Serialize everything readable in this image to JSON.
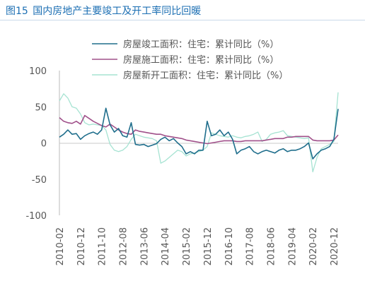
{
  "figure": {
    "number": "图15",
    "title": "国内房地产主要竣工及开工率同比回暖"
  },
  "chart_data": {
    "type": "line",
    "title": "国内房地产主要竣工及开工率同比回暖",
    "xlabel": "",
    "ylabel": "",
    "x_tick_labels": [
      "2010-02",
      "2010-12",
      "2011-10",
      "2012-08",
      "2013-06",
      "2014-04",
      "2015-02",
      "2015-12",
      "2016-10",
      "2017-08",
      "2018-06",
      "2019-04",
      "2020-02",
      "2020-12"
    ],
    "y_tick_labels": [
      "100",
      "50",
      "0",
      "-50",
      "-100"
    ],
    "ylim": [
      -100,
      100
    ],
    "xlim": [
      "2010-02",
      "2021-02"
    ],
    "legend_position": "top-right",
    "grid": false,
    "colors": {
      "completed": "#1f6e8c",
      "under_construction": "#a0508a",
      "new_start": "#a6e3d2"
    },
    "series": [
      {
        "key": "completed",
        "name": "房屋竣工面积：住宅：累计同比（%）",
        "points": [
          [
            "2010-02",
            8
          ],
          [
            "2010-04",
            12
          ],
          [
            "2010-06",
            18
          ],
          [
            "2010-08",
            12
          ],
          [
            "2010-10",
            13
          ],
          [
            "2010-12",
            5
          ],
          [
            "2011-02",
            10
          ],
          [
            "2011-04",
            13
          ],
          [
            "2011-06",
            15
          ],
          [
            "2011-08",
            12
          ],
          [
            "2011-10",
            18
          ],
          [
            "2011-12",
            48
          ],
          [
            "2012-02",
            25
          ],
          [
            "2012-04",
            15
          ],
          [
            "2012-06",
            20
          ],
          [
            "2012-08",
            10
          ],
          [
            "2012-10",
            8
          ],
          [
            "2012-12",
            28
          ],
          [
            "2013-02",
            -2
          ],
          [
            "2013-04",
            -3
          ],
          [
            "2013-06",
            -2
          ],
          [
            "2013-08",
            -5
          ],
          [
            "2013-10",
            -3
          ],
          [
            "2013-12",
            -1
          ],
          [
            "2014-02",
            5
          ],
          [
            "2014-04",
            8
          ],
          [
            "2014-06",
            3
          ],
          [
            "2014-08",
            6
          ],
          [
            "2014-10",
            0
          ],
          [
            "2014-12",
            -5
          ],
          [
            "2015-02",
            -15
          ],
          [
            "2015-04",
            -12
          ],
          [
            "2015-06",
            -15
          ],
          [
            "2015-08",
            -10
          ],
          [
            "2015-10",
            -10
          ],
          [
            "2015-12",
            30
          ],
          [
            "2016-02",
            10
          ],
          [
            "2016-04",
            12
          ],
          [
            "2016-06",
            18
          ],
          [
            "2016-08",
            10
          ],
          [
            "2016-10",
            15
          ],
          [
            "2016-12",
            5
          ],
          [
            "2017-02",
            -15
          ],
          [
            "2017-04",
            -10
          ],
          [
            "2017-06",
            -8
          ],
          [
            "2017-08",
            -5
          ],
          [
            "2017-10",
            -12
          ],
          [
            "2017-12",
            -15
          ],
          [
            "2018-02",
            -12
          ],
          [
            "2018-04",
            -10
          ],
          [
            "2018-06",
            -12
          ],
          [
            "2018-08",
            -14
          ],
          [
            "2018-10",
            -10
          ],
          [
            "2018-12",
            -8
          ],
          [
            "2019-02",
            -12
          ],
          [
            "2019-04",
            -10
          ],
          [
            "2019-06",
            -10
          ],
          [
            "2019-08",
            -8
          ],
          [
            "2019-10",
            -5
          ],
          [
            "2019-12",
            0
          ],
          [
            "2020-02",
            -22
          ],
          [
            "2020-04",
            -15
          ],
          [
            "2020-06",
            -10
          ],
          [
            "2020-08",
            -8
          ],
          [
            "2020-10",
            -5
          ],
          [
            "2020-12",
            5
          ],
          [
            "2021-02",
            47
          ]
        ]
      },
      {
        "key": "under_construction",
        "name": "房屋施工面积：住宅：累计同比（%）",
        "points": [
          [
            "2010-02",
            35
          ],
          [
            "2010-04",
            30
          ],
          [
            "2010-06",
            28
          ],
          [
            "2010-08",
            27
          ],
          [
            "2010-10",
            30
          ],
          [
            "2010-12",
            26
          ],
          [
            "2011-02",
            38
          ],
          [
            "2011-04",
            34
          ],
          [
            "2011-06",
            30
          ],
          [
            "2011-08",
            27
          ],
          [
            "2011-10",
            24
          ],
          [
            "2011-12",
            22
          ],
          [
            "2012-02",
            26
          ],
          [
            "2012-04",
            22
          ],
          [
            "2012-06",
            18
          ],
          [
            "2012-08",
            15
          ],
          [
            "2012-10",
            13
          ],
          [
            "2012-12",
            12
          ],
          [
            "2013-02",
            18
          ],
          [
            "2013-04",
            16
          ],
          [
            "2013-06",
            15
          ],
          [
            "2013-08",
            14
          ],
          [
            "2013-10",
            13
          ],
          [
            "2013-12",
            12
          ],
          [
            "2014-02",
            12
          ],
          [
            "2014-04",
            10
          ],
          [
            "2014-06",
            9
          ],
          [
            "2014-08",
            8
          ],
          [
            "2014-10",
            7
          ],
          [
            "2014-12",
            6
          ],
          [
            "2015-02",
            4
          ],
          [
            "2015-04",
            3
          ],
          [
            "2015-06",
            2
          ],
          [
            "2015-08",
            1
          ],
          [
            "2015-10",
            0
          ],
          [
            "2015-12",
            -1
          ],
          [
            "2016-02",
            0
          ],
          [
            "2016-04",
            1
          ],
          [
            "2016-06",
            2
          ],
          [
            "2016-08",
            3
          ],
          [
            "2016-10",
            3
          ],
          [
            "2016-12",
            3
          ],
          [
            "2017-02",
            2
          ],
          [
            "2017-04",
            2
          ],
          [
            "2017-06",
            3
          ],
          [
            "2017-08",
            3
          ],
          [
            "2017-10",
            3
          ],
          [
            "2017-12",
            3
          ],
          [
            "2018-02",
            3
          ],
          [
            "2018-04",
            4
          ],
          [
            "2018-06",
            5
          ],
          [
            "2018-08",
            6
          ],
          [
            "2018-10",
            6
          ],
          [
            "2018-12",
            6
          ],
          [
            "2019-02",
            8
          ],
          [
            "2019-04",
            8
          ],
          [
            "2019-06",
            9
          ],
          [
            "2019-08",
            9
          ],
          [
            "2019-10",
            9
          ],
          [
            "2019-12",
            9
          ],
          [
            "2020-02",
            4
          ],
          [
            "2020-04",
            3
          ],
          [
            "2020-06",
            3
          ],
          [
            "2020-08",
            3
          ],
          [
            "2020-10",
            3
          ],
          [
            "2020-12",
            4
          ],
          [
            "2021-02",
            11
          ]
        ]
      },
      {
        "key": "new_start",
        "name": "房屋新开工面积：住宅：累计同比（%）",
        "points": [
          [
            "2010-02",
            58
          ],
          [
            "2010-04",
            68
          ],
          [
            "2010-06",
            62
          ],
          [
            "2010-08",
            50
          ],
          [
            "2010-10",
            48
          ],
          [
            "2010-12",
            40
          ],
          [
            "2011-02",
            28
          ],
          [
            "2011-04",
            25
          ],
          [
            "2011-06",
            26
          ],
          [
            "2011-08",
            25
          ],
          [
            "2011-10",
            24
          ],
          [
            "2011-12",
            18
          ],
          [
            "2012-02",
            -2
          ],
          [
            "2012-04",
            -10
          ],
          [
            "2012-06",
            -12
          ],
          [
            "2012-08",
            -10
          ],
          [
            "2012-10",
            -5
          ],
          [
            "2012-12",
            5
          ],
          [
            "2013-02",
            12
          ],
          [
            "2013-04",
            10
          ],
          [
            "2013-06",
            8
          ],
          [
            "2013-08",
            7
          ],
          [
            "2013-10",
            6
          ],
          [
            "2013-12",
            3
          ],
          [
            "2014-02",
            -28
          ],
          [
            "2014-04",
            -25
          ],
          [
            "2014-06",
            -20
          ],
          [
            "2014-08",
            -15
          ],
          [
            "2014-10",
            -10
          ],
          [
            "2014-12",
            -12
          ],
          [
            "2015-02",
            -18
          ],
          [
            "2015-04",
            -15
          ],
          [
            "2015-06",
            -14
          ],
          [
            "2015-08",
            -12
          ],
          [
            "2015-10",
            -10
          ],
          [
            "2015-12",
            -5
          ],
          [
            "2016-02",
            14
          ],
          [
            "2016-04",
            12
          ],
          [
            "2016-06",
            10
          ],
          [
            "2016-08",
            9
          ],
          [
            "2016-10",
            8
          ],
          [
            "2016-12",
            10
          ],
          [
            "2017-02",
            8
          ],
          [
            "2017-04",
            7
          ],
          [
            "2017-06",
            9
          ],
          [
            "2017-08",
            10
          ],
          [
            "2017-10",
            12
          ],
          [
            "2017-12",
            15
          ],
          [
            "2018-02",
            2
          ],
          [
            "2018-04",
            5
          ],
          [
            "2018-06",
            12
          ],
          [
            "2018-08",
            14
          ],
          [
            "2018-10",
            15
          ],
          [
            "2018-12",
            17
          ],
          [
            "2019-02",
            10
          ],
          [
            "2019-04",
            9
          ],
          [
            "2019-06",
            8
          ],
          [
            "2019-08",
            7
          ],
          [
            "2019-10",
            6
          ],
          [
            "2019-12",
            7
          ],
          [
            "2020-02",
            -40
          ],
          [
            "2020-04",
            -20
          ],
          [
            "2020-06",
            -8
          ],
          [
            "2020-08",
            -5
          ],
          [
            "2020-10",
            -2
          ],
          [
            "2020-12",
            2
          ],
          [
            "2021-02",
            70
          ]
        ]
      }
    ]
  }
}
